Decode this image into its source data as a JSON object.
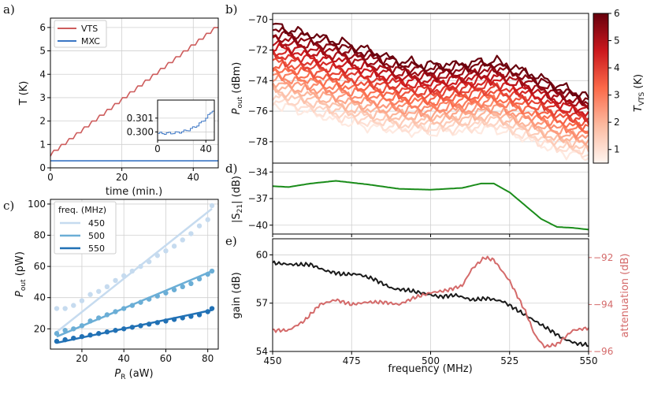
{
  "chart_data": [
    {
      "panel": "a)",
      "type": "line",
      "xlabel": "time (min.)",
      "ylabel": "T (K)",
      "xlim": [
        0,
        47
      ],
      "ylim": [
        0,
        6.4
      ],
      "xticks": [
        "0",
        "20",
        "40"
      ],
      "yticks": [
        "0",
        "1",
        "2",
        "3",
        "4",
        "5",
        "6"
      ],
      "grid": true,
      "legend_position": "top-left",
      "series": [
        {
          "name": "VTS",
          "color": "#cd5c5c",
          "shape": "staircase",
          "start_value": 0.5,
          "end_value": 6.0,
          "step_value": 0.25,
          "steps": 22
        },
        {
          "name": "MXC",
          "color": "#3a75c4",
          "shape": "flat",
          "value": 0.3
        }
      ],
      "inset": {
        "xticks": [
          "0",
          "40"
        ],
        "yticks": [
          "0.300",
          "0.301"
        ],
        "xlim": [
          0,
          47
        ],
        "ylim": [
          0.2994,
          0.3023
        ],
        "series_name": "MXC",
        "start_value": 0.2999,
        "end_value": 0.3018
      }
    },
    {
      "panel": "b)",
      "type": "line",
      "xlabel": "",
      "ylabel": "P_out (dBm)",
      "ylabel_main": "P",
      "ylabel_sub": "out",
      "ylabel_unit": " (dBm)",
      "xlim": [
        450,
        550
      ],
      "ylim": [
        -79.4,
        -69.6
      ],
      "yticks": [
        "−70",
        "−72",
        "−74",
        "−76",
        "−78"
      ],
      "grid": true,
      "n_traces": 23,
      "top_trace_dBm": [
        [
          450,
          -70.4
        ],
        [
          460,
          -70.9
        ],
        [
          470,
          -71.4
        ],
        [
          480,
          -72.0
        ],
        [
          490,
          -72.7
        ],
        [
          500,
          -73.0
        ],
        [
          510,
          -72.9
        ],
        [
          520,
          -72.7
        ],
        [
          530,
          -73.4
        ],
        [
          540,
          -74.3
        ],
        [
          550,
          -75.1
        ]
      ],
      "bottom_trace_dBm": [
        [
          450,
          -75.5
        ],
        [
          460,
          -76.0
        ],
        [
          470,
          -76.6
        ],
        [
          480,
          -77.0
        ],
        [
          490,
          -77.3
        ],
        [
          500,
          -77.4
        ],
        [
          510,
          -77.3
        ],
        [
          520,
          -77.1
        ],
        [
          530,
          -77.8
        ],
        [
          540,
          -78.6
        ],
        [
          550,
          -79.0
        ]
      ],
      "colorbar": {
        "label_main": "T",
        "label_sub": "VTS",
        "label_unit": " (K)",
        "range": [
          0.5,
          6
        ],
        "ticks": [
          "1",
          "2",
          "3",
          "4",
          "5",
          "6"
        ],
        "colormap": [
          "#fff5f0",
          "#fcbba1",
          "#fb6a4a",
          "#cb181d",
          "#67000d"
        ]
      }
    },
    {
      "panel": "d)",
      "type": "line",
      "ylabel": "|S21| (dB)",
      "ylabel_main": "|S",
      "ylabel_sub": "21",
      "ylabel_unit": "| (dB)",
      "xlim": [
        450,
        550
      ],
      "ylim": [
        -41,
        -33
      ],
      "yticks": [
        "−34",
        "−37",
        "−40"
      ],
      "grid": true,
      "series": [
        {
          "name": "",
          "color": "#1a8c1a",
          "points": [
            [
              450,
              -35.6
            ],
            [
              455,
              -35.7
            ],
            [
              462,
              -35.3
            ],
            [
              470,
              -35.0
            ],
            [
              480,
              -35.4
            ],
            [
              490,
              -35.9
            ],
            [
              500,
              -36.0
            ],
            [
              510,
              -35.8
            ],
            [
              516,
              -35.3
            ],
            [
              520,
              -35.3
            ],
            [
              525,
              -36.3
            ],
            [
              530,
              -37.8
            ],
            [
              535,
              -39.3
            ],
            [
              540,
              -40.2
            ],
            [
              545,
              -40.3
            ],
            [
              550,
              -40.5
            ]
          ]
        }
      ]
    },
    {
      "panel": "e)",
      "type": "line",
      "xlabel": "frequency (MHz)",
      "ylabel": "gain (dB)",
      "ylabel_right": "attenuation (dB)",
      "xlim": [
        450,
        550
      ],
      "xticks": [
        "450",
        "475",
        "500",
        "525",
        "550"
      ],
      "ylim_left": [
        54,
        61
      ],
      "yticks_left": [
        "54",
        "57",
        "60"
      ],
      "ylim_right": [
        -96,
        -91.2
      ],
      "yticks_right": [
        "−92",
        "−94",
        "−96"
      ],
      "grid": true,
      "right_axis_color": "#d46a6a",
      "series": [
        {
          "name": "gain",
          "axis": "left",
          "color": "#1a1a1a",
          "points": [
            [
              450,
              59.5
            ],
            [
              456,
              59.4
            ],
            [
              462,
              59.4
            ],
            [
              467,
              59.0
            ],
            [
              472,
              58.8
            ],
            [
              477,
              58.8
            ],
            [
              482,
              58.5
            ],
            [
              488,
              57.9
            ],
            [
              493,
              57.8
            ],
            [
              498,
              57.6
            ],
            [
              503,
              57.4
            ],
            [
              508,
              57.5
            ],
            [
              513,
              57.2
            ],
            [
              518,
              57.3
            ],
            [
              523,
              57.1
            ],
            [
              528,
              56.5
            ],
            [
              533,
              55.9
            ],
            [
              538,
              55.3
            ],
            [
              542,
              54.8
            ],
            [
              546,
              54.5
            ],
            [
              550,
              54.4
            ]
          ]
        },
        {
          "name": "attenuation",
          "axis": "right",
          "color": "#d46a6a",
          "points": [
            [
              450,
              -95.1
            ],
            [
              455,
              -95.1
            ],
            [
              460,
              -94.7
            ],
            [
              465,
              -94.0
            ],
            [
              470,
              -93.8
            ],
            [
              475,
              -94.0
            ],
            [
              480,
              -93.9
            ],
            [
              485,
              -93.9
            ],
            [
              490,
              -94.0
            ],
            [
              495,
              -93.7
            ],
            [
              500,
              -93.5
            ],
            [
              505,
              -93.4
            ],
            [
              510,
              -93.2
            ],
            [
              513,
              -92.5
            ],
            [
              517,
              -92.0
            ],
            [
              520,
              -92.1
            ],
            [
              525,
              -93.0
            ],
            [
              530,
              -94.3
            ],
            [
              533,
              -95.3
            ],
            [
              536,
              -95.8
            ],
            [
              540,
              -95.7
            ],
            [
              545,
              -95.1
            ],
            [
              550,
              -95.0
            ]
          ]
        }
      ]
    },
    {
      "panel": "c)",
      "type": "scatter",
      "xlabel": "P_R (aW)",
      "xlabel_main": "P",
      "xlabel_sub": "R",
      "xlabel_unit": " (aW)",
      "ylabel": "P_out (pW)",
      "ylabel_main": "P",
      "ylabel_sub": "out",
      "ylabel_unit": " (pW)",
      "xlim": [
        5,
        85
      ],
      "ylim": [
        7,
        103
      ],
      "xticks": [
        "20",
        "40",
        "60",
        "80"
      ],
      "yticks": [
        "20",
        "40",
        "60",
        "80",
        "100"
      ],
      "grid": true,
      "legend_title": "freq. (MHz)",
      "legend_position": "top-left",
      "series": [
        {
          "name": "450",
          "color": "#c6dbef",
          "x": [
            8,
            12,
            16,
            20,
            24,
            28,
            32,
            36,
            40,
            44,
            48,
            52,
            56,
            60,
            64,
            68,
            72,
            76,
            80,
            82
          ],
          "y": [
            33,
            33,
            35,
            38,
            42,
            44,
            47,
            51,
            54,
            57,
            60,
            63,
            67,
            70,
            73,
            77,
            81,
            86,
            90,
            99
          ],
          "fit": [
            [
              8,
              18
            ],
            [
              82,
              97
            ]
          ]
        },
        {
          "name": "500",
          "color": "#6baed6",
          "x": [
            8,
            12,
            16,
            20,
            24,
            28,
            32,
            36,
            40,
            44,
            48,
            52,
            56,
            60,
            64,
            68,
            72,
            76,
            80,
            82
          ],
          "y": [
            17,
            19,
            20,
            22,
            25,
            27,
            29,
            31,
            33,
            35,
            37,
            39,
            41,
            43,
            45,
            47,
            49,
            52,
            55,
            57
          ],
          "fit": [
            [
              8,
              15
            ],
            [
              82,
              57
            ]
          ]
        },
        {
          "name": "550",
          "color": "#2171b5",
          "x": [
            8,
            12,
            16,
            20,
            24,
            28,
            32,
            36,
            40,
            44,
            48,
            52,
            56,
            60,
            64,
            68,
            72,
            76,
            80,
            82
          ],
          "y": [
            12,
            13,
            14,
            15,
            16,
            17,
            18,
            19,
            20,
            21,
            22,
            23,
            24,
            25,
            26,
            27,
            28,
            29,
            31,
            33
          ],
          "fit": [
            [
              8,
              11
            ],
            [
              82,
              32
            ]
          ]
        }
      ]
    }
  ]
}
